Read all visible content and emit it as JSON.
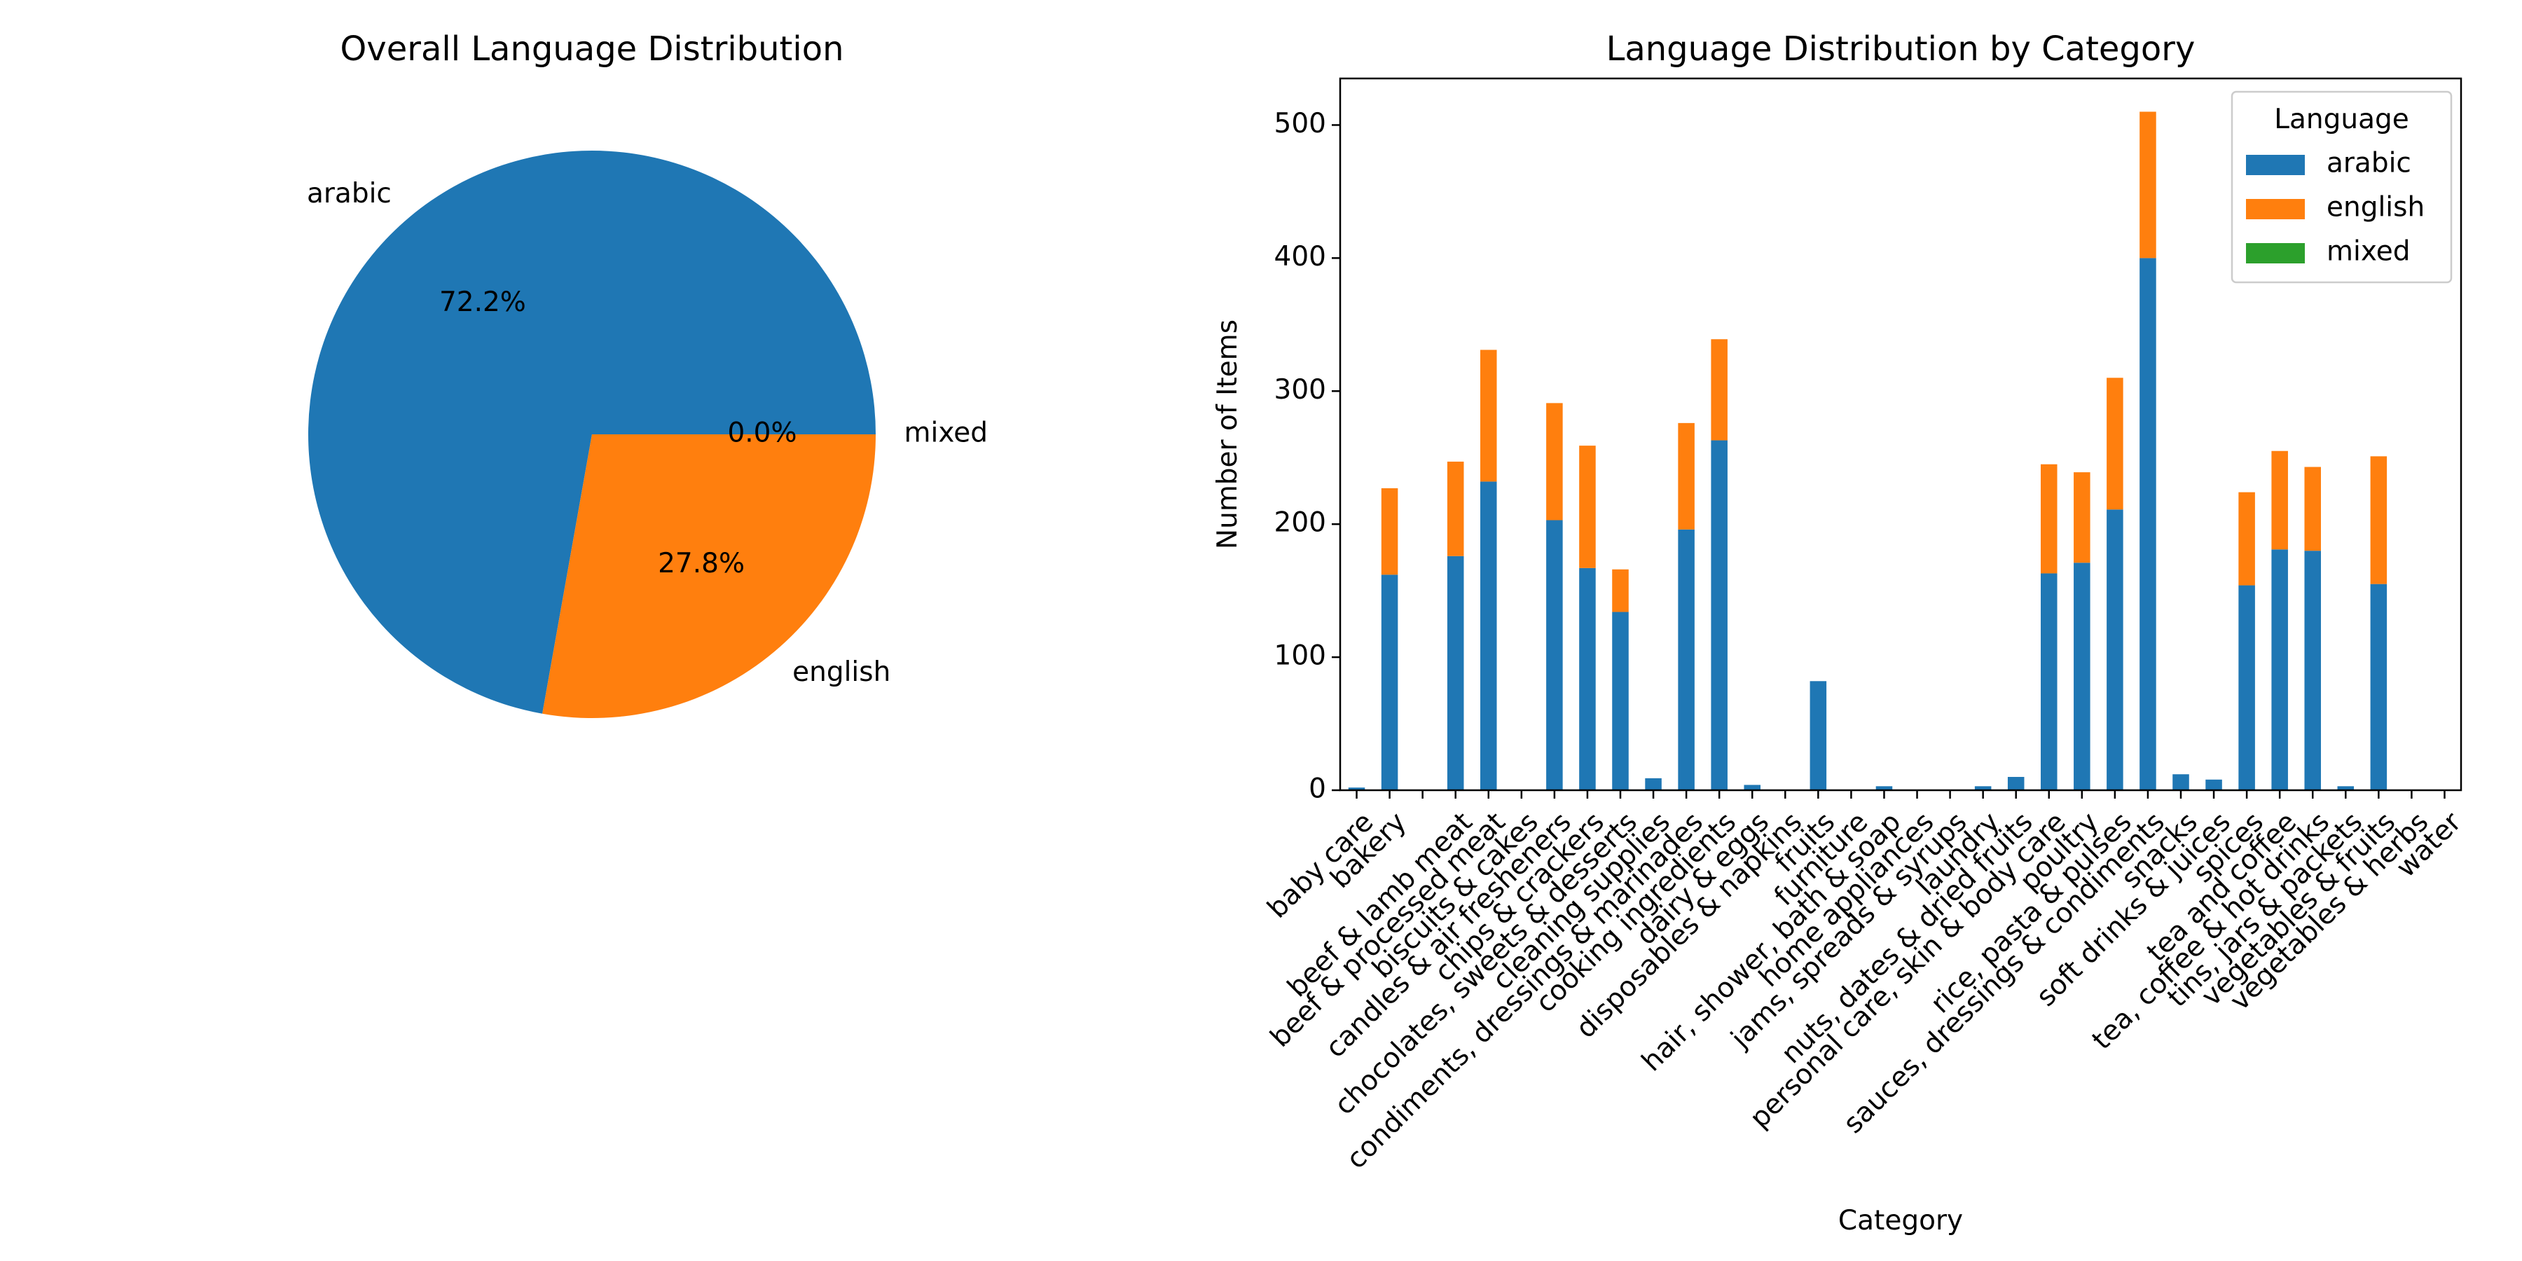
{
  "chart_data": [
    {
      "type": "pie",
      "title": "Overall Language Distribution",
      "labels": [
        "arabic",
        "english",
        "mixed"
      ],
      "values": [
        72.2,
        27.8,
        0.0
      ],
      "percent_labels": [
        "72.2%",
        "27.8%",
        "0.0%"
      ],
      "colors": [
        "#1f77b4",
        "#ff7f0e",
        "#2ca02c"
      ]
    },
    {
      "type": "bar",
      "stacked": true,
      "title": "Language Distribution by Category",
      "xlabel": "Category",
      "ylabel": "Number of Items",
      "ylim": [
        0,
        535
      ],
      "yticks": [
        0,
        100,
        200,
        300,
        400,
        500
      ],
      "legend_title": "Language",
      "legend_position": "top-right",
      "categories": [
        "baby care",
        "bakery",
        "",
        "beef & lamb meat",
        "beef & processed meat",
        "biscuits & cakes",
        "candles & air fresheners",
        "chips & crackers",
        "chocolates, sweets & desserts",
        "cleaning supplies",
        "condiments, dressings & marinades",
        "cooking ingredients",
        "dairy & eggs",
        "disposables & napkins",
        "fruits",
        "furniture",
        "hair, shower, bath & soap",
        "home appliances",
        "jams, spreads & syrups",
        "laundry",
        "nuts, dates & dried fruits",
        "personal care, skin & body care",
        "poultry",
        "rice, pasta & pulses",
        "sauces, dressings & condiments",
        "snacks",
        "soft drinks & juices",
        "spices",
        "tea and coffee",
        "tea, coffee & hot drinks",
        "tins, jars & packets",
        "vegetables & fruits",
        "vegetables & herbs",
        "water"
      ],
      "series": [
        {
          "name": "arabic",
          "color": "#1f77b4",
          "values": [
            2,
            162,
            0,
            176,
            232,
            0,
            203,
            167,
            134,
            9,
            196,
            263,
            4,
            0,
            82,
            0,
            3,
            0,
            0,
            3,
            10,
            163,
            171,
            211,
            400,
            12,
            8,
            154,
            181,
            180,
            3,
            155,
            0,
            0
          ]
        },
        {
          "name": "english",
          "color": "#ff7f0e",
          "values": [
            0,
            65,
            0,
            71,
            99,
            0,
            88,
            92,
            32,
            0,
            80,
            76,
            0,
            0,
            0,
            0,
            0,
            0,
            0,
            0,
            0,
            82,
            68,
            99,
            110,
            0,
            0,
            70,
            74,
            63,
            0,
            96,
            0,
            0
          ]
        },
        {
          "name": "mixed",
          "color": "#2ca02c",
          "values": [
            0,
            0,
            0,
            0,
            0,
            0,
            0,
            0,
            0,
            0,
            0,
            0,
            0,
            0,
            0,
            0,
            0,
            0,
            0,
            0,
            0,
            0,
            0,
            0,
            0,
            0,
            0,
            0,
            0,
            0,
            0,
            0,
            0,
            0
          ]
        }
      ]
    }
  ]
}
